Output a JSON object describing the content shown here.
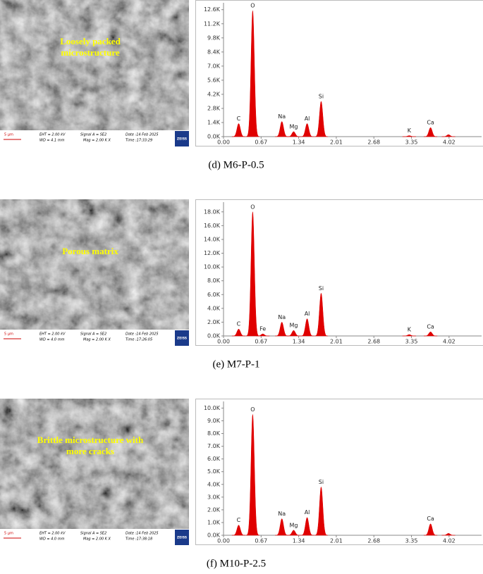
{
  "panels": [
    {
      "image": {
        "overlay": [
          "Loosely packed",
          "microstructure"
        ],
        "scale": "5 µm",
        "eht": "EHT = 2.00 kV",
        "wd": "WD = 4.1 mm",
        "signal": "Signal A = SE2",
        "mag": "Mag = 2.00 K X",
        "date": "Date :14 Feb 2025",
        "time": "Time :17:33:29",
        "logo": "ZEISS"
      },
      "caption": "(d) M6-P-0.5"
    },
    {
      "image": {
        "overlay": [
          "Porous matrix"
        ],
        "scale": "5 µm",
        "eht": "EHT = 2.00 kV",
        "wd": "WD = 4.0 mm",
        "signal": "Signal A = SE2",
        "mag": "Mag = 2.00 K X",
        "date": "Date :14 Feb 2025",
        "time": "Time :17:26:05",
        "logo": "ZEISS"
      },
      "caption": "(e) M7-P-1"
    },
    {
      "image": {
        "overlay": [
          "Brittle microstructure with",
          "more cracks"
        ],
        "scale": "5 µm",
        "eht": "EHT = 2.00 kV",
        "wd": "WD = 4.0 mm",
        "signal": "Signal A = SE2",
        "mag": "Mag = 2.00 K X",
        "date": "Date :14 Feb 2025",
        "time": "Time :17:38:18",
        "logo": "ZEISS"
      },
      "caption": "(f) M10-P-2.5"
    }
  ],
  "chart_data": [
    {
      "type": "spectrum",
      "color": "#e00000",
      "x": [
        0.27,
        0.52,
        1.04,
        1.25,
        1.49,
        1.74,
        3.31,
        3.69,
        4.01
      ],
      "values": [
        1300,
        12500,
        1500,
        500,
        1300,
        3500,
        100,
        900,
        200
      ],
      "labels": [
        "C",
        "O",
        "Na",
        "Mg",
        "Al",
        "Si",
        "K",
        "Ca",
        null
      ],
      "xlim": [
        0,
        4.6
      ],
      "xticks": [
        {
          "value": 0,
          "label": "0.00"
        },
        0.67,
        1.34,
        2.01,
        2.68,
        3.35,
        4.02
      ],
      "ylim": [
        0,
        13000
      ],
      "yticks": [
        {
          "value": 0,
          "label": "0.0K"
        },
        {
          "value": 1400,
          "label": "1.4K"
        },
        {
          "value": 2800,
          "label": "2.8K"
        },
        {
          "value": 4200,
          "label": "4.2K"
        },
        {
          "value": 5600,
          "label": "5.6K"
        },
        {
          "value": 7000,
          "label": "7.0K"
        },
        {
          "value": 8400,
          "label": "8.4K"
        },
        {
          "value": 9800,
          "label": "9.8K"
        },
        {
          "value": 11200,
          "label": "11.2K"
        },
        {
          "value": 12600,
          "label": "12.6K"
        }
      ]
    },
    {
      "type": "spectrum",
      "color": "#e00000",
      "x": [
        0.27,
        0.52,
        0.7,
        1.04,
        1.25,
        1.49,
        1.74,
        3.31,
        3.69
      ],
      "values": [
        1000,
        18000,
        300,
        2000,
        800,
        2500,
        6200,
        200,
        600
      ],
      "labels": [
        "C",
        "O",
        "Fe",
        "Na",
        "Mg",
        "Al",
        "Si",
        "K",
        "Ca"
      ],
      "xlim": [
        0,
        4.6
      ],
      "xticks": [
        {
          "value": 0,
          "label": "0.00"
        },
        0.67,
        1.34,
        2.01,
        2.68,
        3.35,
        4.02
      ],
      "ylim": [
        0,
        19000
      ],
      "yticks": [
        {
          "value": 0,
          "label": "0.0K"
        },
        {
          "value": 2000,
          "label": "2.0K"
        },
        {
          "value": 4000,
          "label": "4.0K"
        },
        {
          "value": 6000,
          "label": "6.0K"
        },
        {
          "value": 8000,
          "label": "8.0K"
        },
        {
          "value": 10000,
          "label": "10.0K"
        },
        {
          "value": 12000,
          "label": "12.0K"
        },
        {
          "value": 14000,
          "label": "14.0K"
        },
        {
          "value": 16000,
          "label": "16.0K"
        },
        {
          "value": 18000,
          "label": "18.0K"
        }
      ]
    },
    {
      "type": "spectrum",
      "color": "#e00000",
      "x": [
        0.27,
        0.52,
        1.04,
        1.25,
        1.49,
        1.74,
        3.69,
        4.01
      ],
      "values": [
        800,
        9500,
        1300,
        400,
        1400,
        3800,
        900,
        150
      ],
      "labels": [
        "C",
        "O",
        "Na",
        "Mg",
        "Al",
        "Si",
        "Ca",
        null
      ],
      "xlim": [
        0,
        4.6
      ],
      "xticks": [
        {
          "value": 0,
          "label": "0.00"
        },
        0.67,
        1.34,
        2.01,
        2.68,
        3.35,
        4.02
      ],
      "ylim": [
        0,
        10300
      ],
      "yticks": [
        {
          "value": 0,
          "label": "0.0K"
        },
        {
          "value": 1000,
          "label": "1.0K"
        },
        {
          "value": 2000,
          "label": "2.0K"
        },
        {
          "value": 3000,
          "label": "3.0K"
        },
        {
          "value": 4000,
          "label": "4.0K"
        },
        {
          "value": 5000,
          "label": "5.0K"
        },
        {
          "value": 6000,
          "label": "6.0K"
        },
        {
          "value": 7000,
          "label": "7.0K"
        },
        {
          "value": 8000,
          "label": "8.0K"
        },
        {
          "value": 9000,
          "label": "9.0K"
        },
        {
          "value": 10000,
          "label": "10.0K"
        }
      ]
    }
  ]
}
